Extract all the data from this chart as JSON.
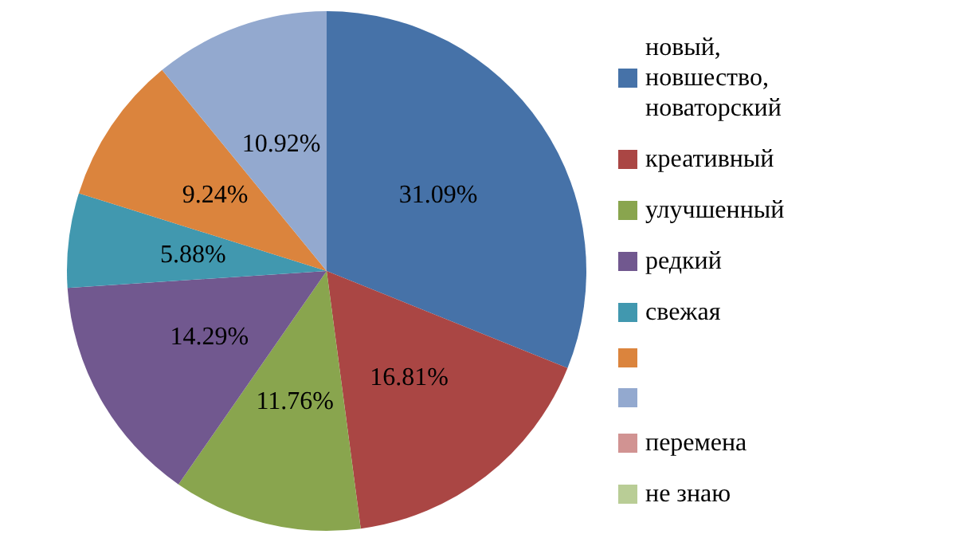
{
  "chart_data": {
    "type": "pie",
    "categories": [
      "новый, новшество, новаторский",
      "креативный",
      "улучшенный",
      "редкий",
      "свежая",
      null,
      null,
      "перемена",
      "не знаю"
    ],
    "values": [
      31.09,
      16.81,
      11.76,
      14.29,
      5.88,
      9.24,
      10.92,
      0,
      0
    ],
    "value_labels": [
      "31.09%",
      "16.81%",
      "11.76%",
      "14.29%",
      "5.88%",
      "9.24%",
      "10.92%",
      null,
      null
    ],
    "colors": [
      "#4672a8",
      "#aa4644",
      "#89a54e",
      "#71588f",
      "#4198af",
      "#db843d",
      "#93a9cf",
      "#d19392",
      "#b9cd96"
    ],
    "legend": "right"
  }
}
